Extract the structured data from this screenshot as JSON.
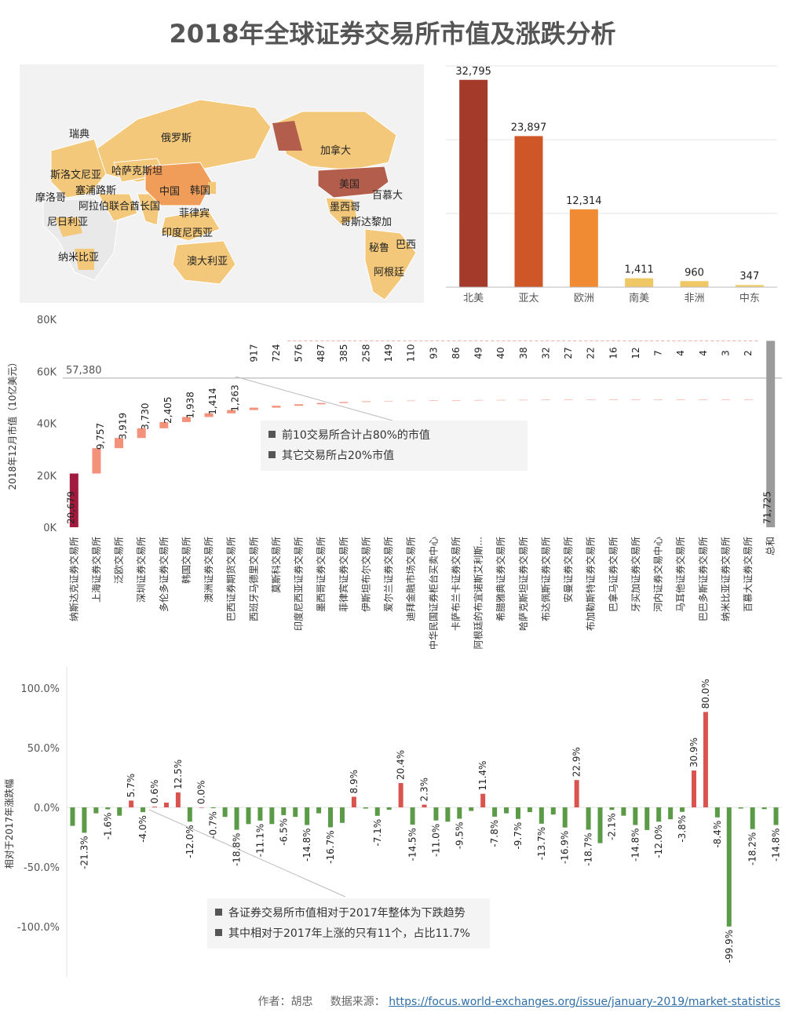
{
  "title": "2018年全球证券交易所市值及涨跌分析",
  "colors": {
    "north_america": "#a33a2a",
    "asia_pacific": "#cf5626",
    "europe": "#f08a33",
    "south_america": "#efc765",
    "africa": "#efc765",
    "middle_east": "#f1cf6e",
    "waterfall_top": "#9f1a3c",
    "waterfall_step": "#f4917b",
    "total": "#9b9b9b",
    "rise": "#d9534f",
    "fall": "#5b9b48",
    "map_high": "#b35e4c",
    "map_mid": "#ef9d58",
    "map_low": "#f3c87a"
  },
  "map": {
    "labels": [
      "俄罗斯",
      "瑞典",
      "斯洛文尼亚",
      "哈萨克斯坦",
      "塞浦路斯",
      "摩洛哥",
      "中国",
      "韩国",
      "阿拉伯联合酋长国",
      "菲律宾",
      "尼日利亚",
      "印度尼西亚",
      "纳米比亚",
      "澳大利亚",
      "加拿大",
      "美国",
      "百慕大",
      "墨西哥",
      "哥斯达黎加",
      "秘鲁",
      "巴西",
      "阿根廷"
    ]
  },
  "chart_data": [
    {
      "type": "bar",
      "categories": [
        "北美",
        "亚太",
        "欧洲",
        "南美",
        "非洲",
        "中东"
      ],
      "values": [
        32795,
        23897,
        12314,
        1411,
        960,
        347
      ],
      "data_labels": [
        "32,795",
        "23,897",
        "12,314",
        "1,411",
        "960",
        "347"
      ],
      "ylim": [
        0,
        35000
      ],
      "grid": true
    },
    {
      "type": "bar",
      "subtype": "waterfall",
      "ylabel": "2018年12月市值（10亿美元）",
      "ylim": [
        0,
        80000
      ],
      "yticks": [
        "0K",
        "20K",
        "40K",
        "60K",
        "80K"
      ],
      "reference_line": {
        "value": 57380,
        "label": "57,380"
      },
      "categories": [
        "纳斯达克证券交易所",
        "上海证券交易所",
        "泛欧交易所",
        "深圳证券交易所",
        "多伦多证券交易所",
        "韩国交易所",
        "澳洲证券交易所",
        "巴西证券期货交易所",
        "西班牙马德里交易所",
        "莫斯科交易所",
        "印度尼西亚证券交易所",
        "墨西哥证券交易所",
        "菲律宾证券交易所",
        "伊斯坦布尔交易所",
        "爱尔兰证券交易所",
        "迪拜金融市场交易所",
        "中华民国证券柜台买卖中心",
        "卡萨布兰卡证券交易所",
        "阿根廷的布宜诺斯艾利斯...",
        "希腊雅典证券交易所",
        "哈萨克斯坦证券交易所",
        "布达佩斯证券交易所",
        "安曼证券交易所",
        "布加勒斯特证券交易所",
        "巴拿马证券交易所",
        "牙买加证券交易所",
        "河内证券交易中心",
        "马耳他证券交易所",
        "巴巴多斯证券交易所",
        "纳米比亚证券交易所",
        "百慕大证券交易所",
        "总和"
      ],
      "values": [
        20679,
        9757,
        3919,
        3730,
        2405,
        1938,
        1414,
        1263,
        917,
        724,
        576,
        487,
        385,
        258,
        149,
        110,
        93,
        86,
        49,
        40,
        38,
        32,
        27,
        22,
        16,
        12,
        7,
        4,
        4,
        3,
        2,
        71725
      ],
      "data_labels": [
        "20,679",
        "9,757",
        "3,919",
        "3,730",
        "2,405",
        "1,938",
        "1,414",
        "1,263",
        "917",
        "724",
        "576",
        "487",
        "385",
        "258",
        "149",
        "110",
        "93",
        "86",
        "49",
        "40",
        "38",
        "32",
        "27",
        "22",
        "16",
        "12",
        "7",
        "4",
        "4",
        "3",
        "2",
        "71,725"
      ],
      "annotations": [
        "前10交易所合计占80%的市值",
        "其它交易所占20%市值"
      ]
    },
    {
      "type": "bar",
      "ylabel": "相对于2017年涨跌幅",
      "ylim": [
        -120,
        120
      ],
      "yticks": [
        "100.0%",
        "50.0%",
        "0.0%",
        "-50.0%",
        "-100.0%"
      ],
      "values": [
        -15.5,
        -21.3,
        -5,
        -1.6,
        -7,
        5.7,
        -4.0,
        0.6,
        4,
        12.5,
        -12.0,
        0.0,
        -0.7,
        -8,
        -18.8,
        -14,
        -11.1,
        -14,
        -6.5,
        -8,
        -14.8,
        -5,
        -16.7,
        -13,
        8.9,
        -1,
        -7.1,
        -2,
        20.4,
        -14.5,
        2.3,
        -11.0,
        -12,
        -9.5,
        -3,
        11.4,
        -7.8,
        -5,
        -9.7,
        -4,
        -13.7,
        -6,
        -16.9,
        22.9,
        -18.7,
        -30,
        -2.1,
        -7,
        -14.8,
        -19,
        -12.0,
        -10,
        -3.8,
        30.9,
        80.0,
        -8.4,
        -99.9,
        -1,
        -18.2,
        -1.5,
        -14.8
      ],
      "data_labels": [
        "",
        "-21.3%",
        "",
        "-1.6%",
        "",
        "5.7%",
        "-4.0%",
        "0.6%",
        "",
        "12.5%",
        "-12.0%",
        "0.0%",
        "-0.7%",
        "",
        "-18.8%",
        "",
        "-11.1%",
        "",
        "-6.5%",
        "",
        "-14.8%",
        "",
        "-16.7%",
        "",
        "8.9%",
        "",
        "-7.1%",
        "",
        "20.4%",
        "-14.5%",
        "2.3%",
        "-11.0%",
        "",
        "-9.5%",
        "",
        "11.4%",
        "-7.8%",
        "",
        "-9.7%",
        "",
        "-13.7%",
        "",
        "-16.9%",
        "22.9%",
        "-18.7%",
        "",
        "-2.1%",
        "",
        "-14.8%",
        "",
        "-12.0%",
        "",
        "-3.8%",
        "30.9%",
        "80.0%",
        "-8.4%",
        "-99.9%",
        "",
        "-18.2%",
        "",
        "-14.8%"
      ],
      "annotations": [
        "各证券交易所市值相对于2017年整体为下跌趋势",
        "其中相对于2017年上涨的只有11个，占比11.7%"
      ]
    }
  ],
  "footer": {
    "author": "作者：胡忠",
    "source_label": "数据来源：",
    "source_url": "https://focus.world-exchanges.org/issue/january-2019/market-statistics"
  }
}
